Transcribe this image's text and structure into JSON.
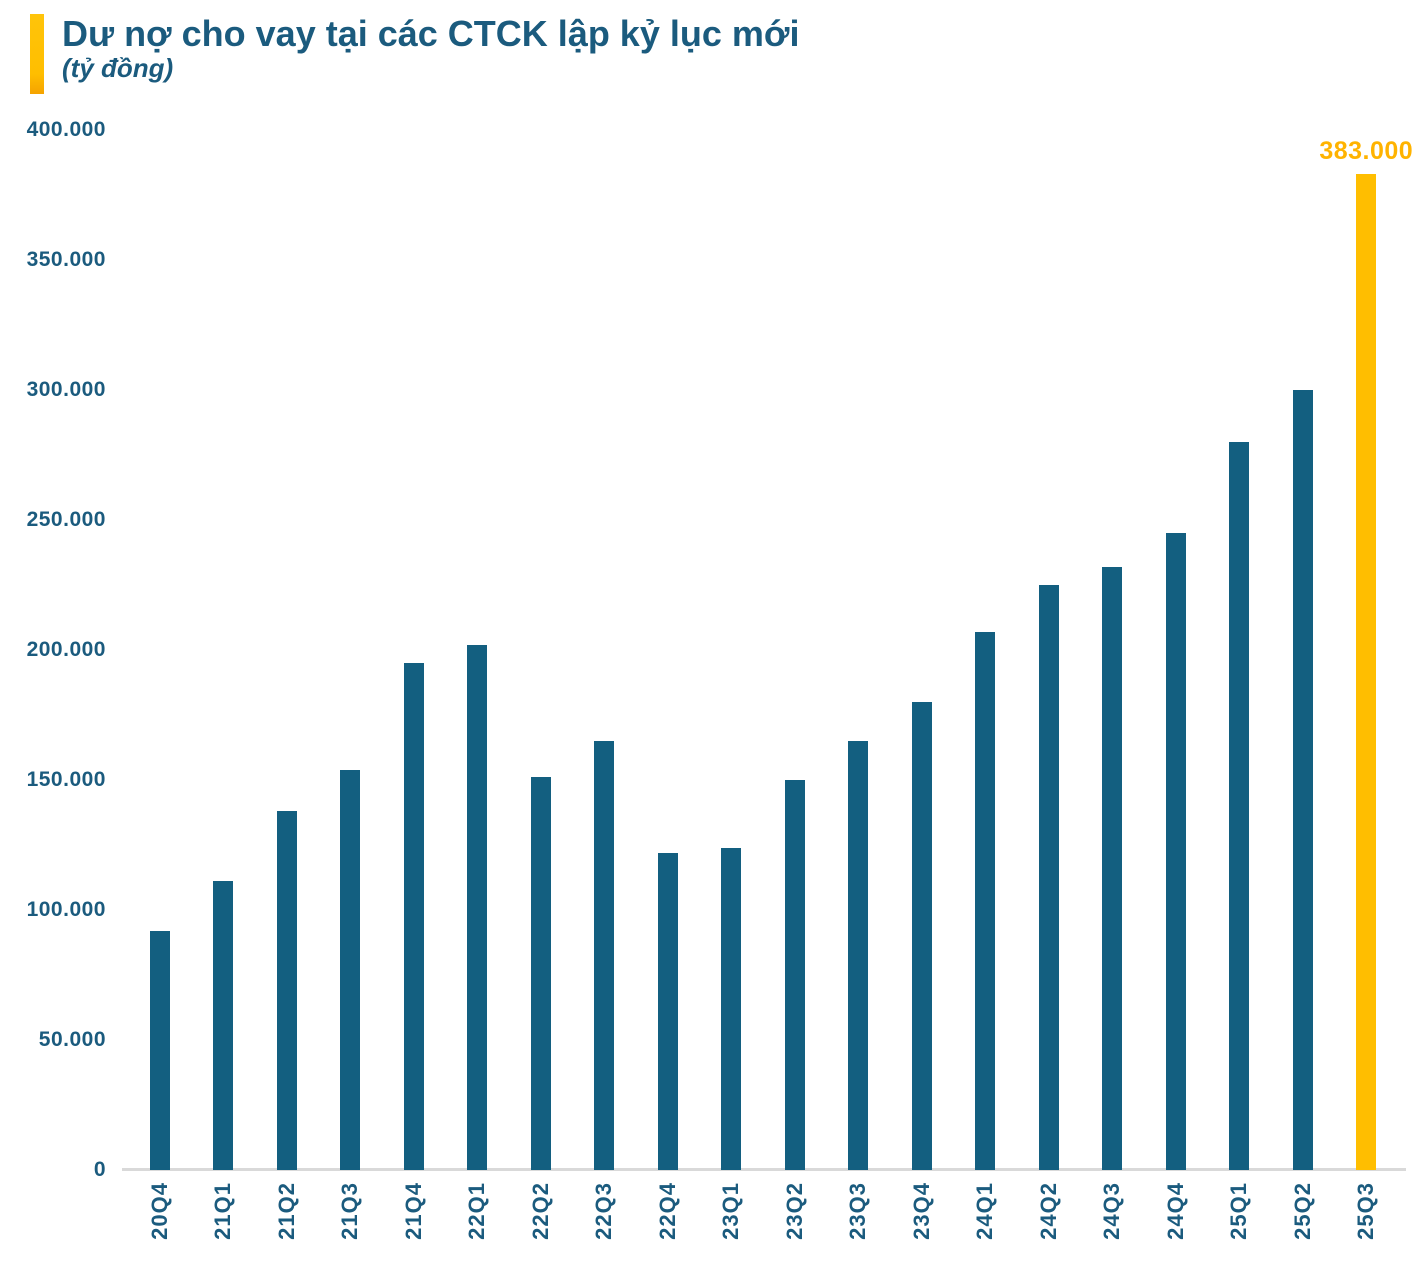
{
  "header": {
    "title": "Dư nợ cho vay tại các CTCK lập kỷ lục mới",
    "subtitle": "(tỷ đồng)"
  },
  "chart_data": {
    "type": "bar",
    "title": "Dư nợ cho vay tại các CTCK lập kỷ lục mới",
    "unit": "tỷ đồng",
    "categories": [
      "20Q4",
      "21Q1",
      "21Q2",
      "21Q3",
      "21Q4",
      "22Q1",
      "22Q2",
      "22Q3",
      "22Q4",
      "23Q1",
      "23Q2",
      "23Q3",
      "23Q4",
      "24Q1",
      "24Q2",
      "24Q3",
      "24Q4",
      "25Q1",
      "25Q2",
      "25Q3"
    ],
    "values": [
      92000,
      111000,
      138000,
      154000,
      195000,
      202000,
      151000,
      165000,
      122000,
      124000,
      150000,
      165000,
      180000,
      207000,
      225000,
      232000,
      245000,
      280000,
      300000,
      383000
    ],
    "highlight_index": 19,
    "highlight_label": "383.000",
    "xlabel": "",
    "ylabel": "tỷ đồng",
    "ylim": [
      0,
      400000
    ],
    "yticks": [
      {
        "value": 0,
        "label": "0"
      },
      {
        "value": 50000,
        "label": "50.000"
      },
      {
        "value": 100000,
        "label": "100.000"
      },
      {
        "value": 150000,
        "label": "150.000"
      },
      {
        "value": 200000,
        "label": "200.000"
      },
      {
        "value": 250000,
        "label": "250.000"
      },
      {
        "value": 300000,
        "label": "300.000"
      },
      {
        "value": 350000,
        "label": "350.000"
      },
      {
        "value": 400000,
        "label": "400.000"
      }
    ],
    "grid": false,
    "legend": false,
    "colors": {
      "bar": "#135F80",
      "highlight": "#FFBE00",
      "highlight_text": "#FFB300",
      "text": "#1B5B7E",
      "axis_line": "#D9D9D9"
    }
  }
}
